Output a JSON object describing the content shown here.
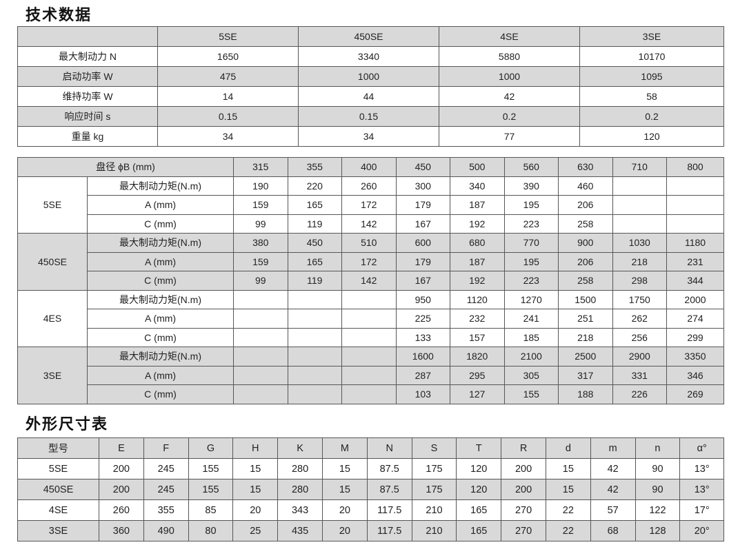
{
  "titles": {
    "tech": "技术数据",
    "dims": "外形尺寸表"
  },
  "tech_table": {
    "headers": [
      "",
      "5SE",
      "450SE",
      "4SE",
      "3SE"
    ],
    "rows": [
      [
        "最大制动力  N",
        "1650",
        "3340",
        "5880",
        "10170"
      ],
      [
        "启动功率  W",
        "475",
        "1000",
        "1000",
        "1095"
      ],
      [
        "维持功率  W",
        "14",
        "44",
        "42",
        "58"
      ],
      [
        "响应时间  s",
        "0.15",
        "0.15",
        "0.2",
        "0.2"
      ],
      [
        "重量  kg",
        "34",
        "34",
        "77",
        "120"
      ]
    ]
  },
  "disc_table": {
    "header_label": "盘径  ϕB (mm)",
    "diameters": [
      "315",
      "355",
      "400",
      "450",
      "500",
      "560",
      "630",
      "710",
      "800"
    ],
    "groups": [
      {
        "model": "5SE",
        "rows": [
          [
            "最大制动力矩(N.m)",
            "190",
            "220",
            "260",
            "300",
            "340",
            "390",
            "460",
            "",
            ""
          ],
          [
            "A (mm)",
            "159",
            "165",
            "172",
            "179",
            "187",
            "195",
            "206",
            "",
            ""
          ],
          [
            "C (mm)",
            "99",
            "119",
            "142",
            "167",
            "192",
            "223",
            "258",
            "",
            ""
          ]
        ]
      },
      {
        "model": "450SE",
        "rows": [
          [
            "最大制动力矩(N.m)",
            "380",
            "450",
            "510",
            "600",
            "680",
            "770",
            "900",
            "1030",
            "1180"
          ],
          [
            "A (mm)",
            "159",
            "165",
            "172",
            "179",
            "187",
            "195",
            "206",
            "218",
            "231"
          ],
          [
            "C (mm)",
            "99",
            "119",
            "142",
            "167",
            "192",
            "223",
            "258",
            "298",
            "344"
          ]
        ]
      },
      {
        "model": "4ES",
        "rows": [
          [
            "最大制动力矩(N.m)",
            "",
            "",
            "",
            "950",
            "1120",
            "1270",
            "1500",
            "1750",
            "2000"
          ],
          [
            "A (mm)",
            "",
            "",
            "",
            "225",
            "232",
            "241",
            "251",
            "262",
            "274"
          ],
          [
            "C (mm)",
            "",
            "",
            "",
            "133",
            "157",
            "185",
            "218",
            "256",
            "299"
          ]
        ]
      },
      {
        "model": "3SE",
        "rows": [
          [
            "最大制动力矩(N.m)",
            "",
            "",
            "",
            "1600",
            "1820",
            "2100",
            "2500",
            "2900",
            "3350"
          ],
          [
            "A (mm)",
            "",
            "",
            "",
            "287",
            "295",
            "305",
            "317",
            "331",
            "346"
          ],
          [
            "C (mm)",
            "",
            "",
            "",
            "103",
            "127",
            "155",
            "188",
            "226",
            "269"
          ]
        ]
      }
    ]
  },
  "dims_table": {
    "headers": [
      "型号",
      "E",
      "F",
      "G",
      "H",
      "K",
      "M",
      "N",
      "S",
      "T",
      "R",
      "d",
      "m",
      "n",
      "α°"
    ],
    "rows": [
      [
        "5SE",
        "200",
        "245",
        "155",
        "15",
        "280",
        "15",
        "87.5",
        "175",
        "120",
        "200",
        "15",
        "42",
        "90",
        "13°"
      ],
      [
        "450SE",
        "200",
        "245",
        "155",
        "15",
        "280",
        "15",
        "87.5",
        "175",
        "120",
        "200",
        "15",
        "42",
        "90",
        "13°"
      ],
      [
        "4SE",
        "260",
        "355",
        "85",
        "20",
        "343",
        "20",
        "117.5",
        "210",
        "165",
        "270",
        "22",
        "57",
        "122",
        "17°"
      ],
      [
        "3SE",
        "360",
        "490",
        "80",
        "25",
        "435",
        "20",
        "117.5",
        "210",
        "165",
        "270",
        "22",
        "68",
        "128",
        "20°"
      ]
    ]
  },
  "colors": {
    "shade": "#d9d9d9",
    "border": "#555555"
  }
}
